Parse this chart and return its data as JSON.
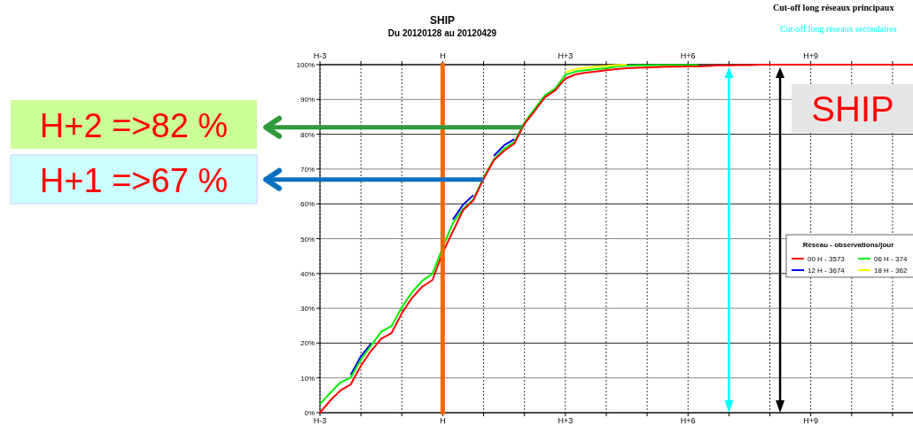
{
  "chart_data": {
    "type": "line",
    "title": "SHIP",
    "subtitle": "Du 20120128 au 20120429",
    "legend_title": "Réseau - observations/jour",
    "legend": "right",
    "grid": true,
    "line_style": "solid",
    "categories": [
      "H-3",
      null,
      null,
      null,
      null,
      null,
      null,
      null,
      null,
      null,
      null,
      null,
      "H",
      null,
      null,
      null,
      null,
      null,
      null,
      null,
      null,
      null,
      null,
      null,
      "H+3",
      null,
      null,
      null,
      null,
      null,
      null,
      null,
      null,
      null,
      null,
      null,
      "H+6",
      null,
      null,
      null,
      null,
      null,
      null,
      null,
      null,
      null,
      null,
      null,
      "H+9",
      null,
      null,
      null,
      null,
      null,
      null,
      null,
      null,
      null,
      null
    ],
    "ylim": [
      0,
      100
    ],
    "yticks": [
      {
        "value": 0,
        "label": "0%"
      },
      {
        "value": 10,
        "label": "10%"
      },
      {
        "value": 20,
        "label": "20%"
      },
      {
        "value": 30,
        "label": "30%"
      },
      {
        "value": 40,
        "label": "40%"
      },
      {
        "value": 50,
        "label": "50%"
      },
      {
        "value": 60,
        "label": "60%"
      },
      {
        "value": 70,
        "label": "70%"
      },
      {
        "value": 80,
        "label": "80%"
      },
      {
        "value": 90,
        "label": "90%"
      },
      {
        "value": 100,
        "label": "100%"
      }
    ],
    "series": [
      {
        "name": "00 H - 3573",
        "color": "#ff0000",
        "values": [
          0,
          3.5,
          6.4,
          8.1,
          13.5,
          17.8,
          21.3,
          22.9,
          28.6,
          33,
          36.2,
          38.1,
          46,
          52.1,
          58.2,
          61,
          67.2,
          72.5,
          75.2,
          77.3,
          83,
          86.7,
          90.6,
          92.6,
          96,
          97.2,
          97.7,
          98,
          98.4,
          98.7,
          99,
          99.1,
          99.2,
          99.3,
          99.4,
          99.4,
          99.5,
          99.5,
          99.6,
          99.8,
          99.8,
          99.9,
          99.9,
          100,
          100,
          100,
          100,
          100,
          100,
          100,
          100,
          100,
          100,
          100,
          100,
          100,
          100,
          100,
          100
        ]
      },
      {
        "name": "18 H - 362",
        "color": "#ffff00",
        "values": [
          null,
          null,
          null,
          null,
          null,
          null,
          null,
          null,
          null,
          null,
          null,
          null,
          null,
          null,
          null,
          null,
          null,
          null,
          null,
          null,
          null,
          null,
          null,
          null,
          97.8,
          98.7,
          99.1,
          99.4,
          99.6,
          99.9,
          100,
          null,
          null,
          null,
          null,
          null,
          null,
          null,
          null,
          null,
          null,
          null,
          null,
          null,
          null,
          null,
          null,
          null,
          null,
          null,
          null,
          null,
          null,
          null,
          null,
          null,
          null,
          null,
          null
        ]
      },
      {
        "name": "06 H - 374",
        "color": "#00ee00",
        "values": [
          2.5,
          5.7,
          8.7,
          10.1,
          15.2,
          19.3,
          23.3,
          24.9,
          30.3,
          34.6,
          37.9,
          39.9,
          47.5,
          54.5,
          58.6,
          61.3,
          67.6,
          72.8,
          75.8,
          77.8,
          83.4,
          87.3,
          91.2,
          93.1,
          97.1,
          98,
          98.4,
          98.7,
          99,
          99.5,
          99.7,
          99.8,
          99.8,
          99.9,
          99.9,
          99.9,
          99.9,
          99.9,
          null,
          null,
          null,
          null,
          null,
          null,
          null,
          null,
          null,
          null,
          null,
          null,
          null,
          null,
          null,
          null,
          null,
          null,
          null,
          null,
          null
        ]
      },
      {
        "name": "12 H - 3674",
        "color": "#0000ee",
        "values": [
          null,
          null,
          null,
          10.8,
          16.2,
          19.9,
          null,
          null,
          null,
          null,
          null,
          null,
          null,
          55.5,
          59.8,
          62.5,
          null,
          73.8,
          76.8,
          78.6,
          null,
          null,
          null,
          null,
          null,
          null,
          null,
          null,
          null,
          null,
          null,
          null,
          null,
          null,
          null,
          null,
          null,
          null,
          null,
          null,
          null,
          null,
          null,
          null,
          null,
          null,
          null,
          null,
          null,
          null,
          null,
          null,
          null,
          null,
          null,
          null,
          null,
          null,
          null
        ]
      }
    ],
    "ref_lines": [
      {
        "axis": "x",
        "value": "H",
        "color": "#ff6600"
      },
      {
        "axis": "y",
        "value": 82,
        "color": "#2e9a3c"
      },
      {
        "axis": "y",
        "value": 67,
        "color": "#0a70c0"
      }
    ],
    "annotations": [
      "H+2 =>82 %",
      "H+1 =>67 %",
      "SHIP",
      "Cut-off long réseaux principaux",
      "Cut-off long réseaux secondaires"
    ]
  }
}
